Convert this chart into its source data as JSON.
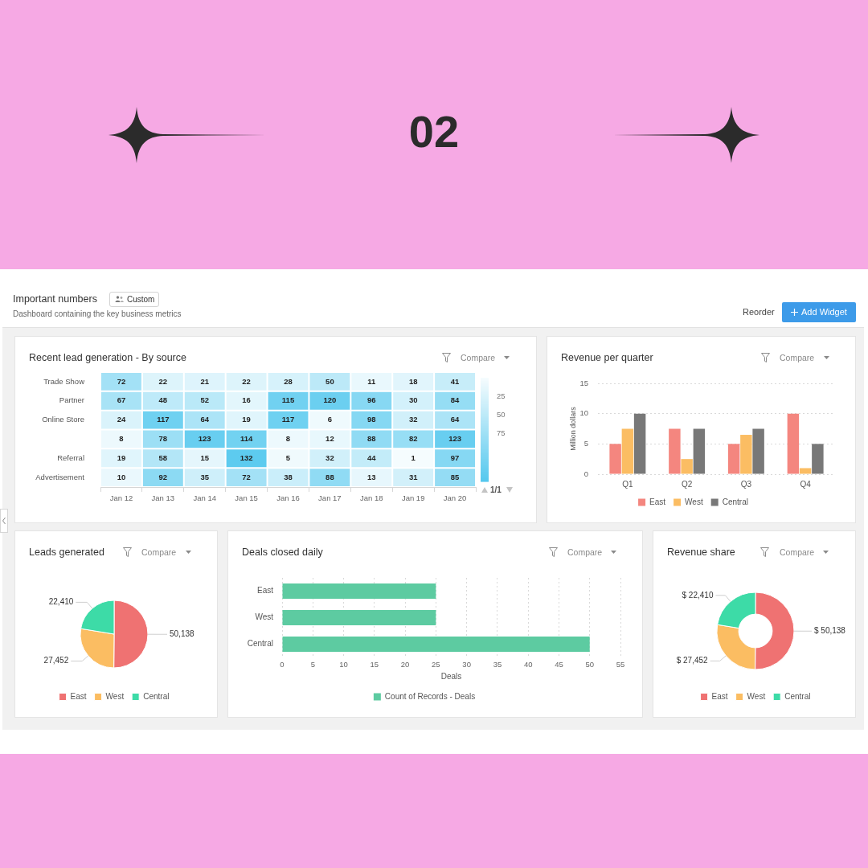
{
  "chart_data": [
    {
      "type": "other",
      "title": "Important numbers",
      "subtitle": "Dashboard containing the key business metrics",
      "annotations": [
        "02",
        "Custom",
        "Reorder",
        "Add Widget"
      ]
    },
    {
      "type": "heatmap",
      "title": "Recent lead generation - By source",
      "categories": [
        "Jan 12",
        "Jan 13",
        "Jan 14",
        "Jan 15",
        "Jan 16",
        "Jan 17",
        "Jan 18",
        "Jan 19",
        "Jan 20"
      ],
      "y_categories": [
        "Trade Show",
        "Partner",
        "Online Store",
        null,
        "Referral",
        "Advertisement"
      ],
      "cells": [
        [
          72,
          22,
          21,
          22,
          28,
          50,
          11,
          18,
          41
        ],
        [
          67,
          48,
          52,
          16,
          115,
          120,
          96,
          30,
          84
        ],
        [
          24,
          117,
          64,
          19,
          117,
          6,
          98,
          32,
          64
        ],
        [
          8,
          78,
          123,
          114,
          8,
          12,
          88,
          82,
          123
        ],
        [
          19,
          58,
          15,
          132,
          5,
          32,
          44,
          1,
          97
        ],
        [
          10,
          92,
          35,
          72,
          38,
          88,
          13,
          31,
          85
        ]
      ],
      "clim": [
        0,
        140
      ],
      "cticks": [
        25,
        50,
        75
      ],
      "data_labels": true,
      "annotations": [
        "Compare",
        "1/1"
      ]
    },
    {
      "type": "bar",
      "title": "Revenue per quarter",
      "ylabel": "Million dollars",
      "categories": [
        "Q1",
        "Q2",
        "Q3",
        "Q4"
      ],
      "series": [
        {
          "name": "East",
          "color": "#f4867f",
          "values": [
            5,
            7.5,
            5,
            10
          ]
        },
        {
          "name": "West",
          "color": "#fbbd63",
          "values": [
            7.5,
            2.5,
            6.5,
            1
          ]
        },
        {
          "name": "Central",
          "color": "#787878",
          "values": [
            10,
            7.5,
            7.5,
            5
          ]
        }
      ],
      "ylim": [
        0,
        15
      ],
      "yticks": [
        0,
        5,
        10,
        15
      ],
      "grid": "y",
      "legend": "bottom",
      "annotations": [
        "Compare"
      ]
    },
    {
      "type": "pie",
      "title": "Leads generated",
      "categories": [
        "East",
        "West",
        "Central"
      ],
      "values": [
        50138,
        27452,
        22410
      ],
      "colors": [
        "#ef7272",
        "#fbbd62",
        "#3ddba7"
      ],
      "value_labels": [
        "50,138",
        "27,452",
        "22,410"
      ],
      "legend": "bottom",
      "annotations": [
        "Compare"
      ]
    },
    {
      "type": "bar",
      "orientation": "horizontal",
      "title": "Deals closed daily",
      "xlabel": "Deals",
      "categories": [
        "East",
        "West",
        "Central"
      ],
      "series": [
        {
          "name": "Count of Records - Deals",
          "color": "#5dcba1",
          "values": [
            25,
            25,
            50
          ]
        }
      ],
      "xlim": [
        0,
        55
      ],
      "xticks": [
        0,
        5,
        10,
        15,
        20,
        25,
        30,
        35,
        40,
        45,
        50,
        55
      ],
      "grid": "x",
      "legend": "bottom",
      "annotations": [
        "Compare"
      ]
    },
    {
      "type": "donut",
      "title": "Revenue share",
      "categories": [
        "East",
        "West",
        "Central"
      ],
      "values": [
        50138,
        27452,
        22410
      ],
      "colors": [
        "#ef7272",
        "#fbbd62",
        "#3ddba7"
      ],
      "value_labels": [
        "$ 50,138",
        "$ 27,452",
        "$ 22,410"
      ],
      "legend": "bottom",
      "annotations": [
        "Compare"
      ]
    }
  ]
}
